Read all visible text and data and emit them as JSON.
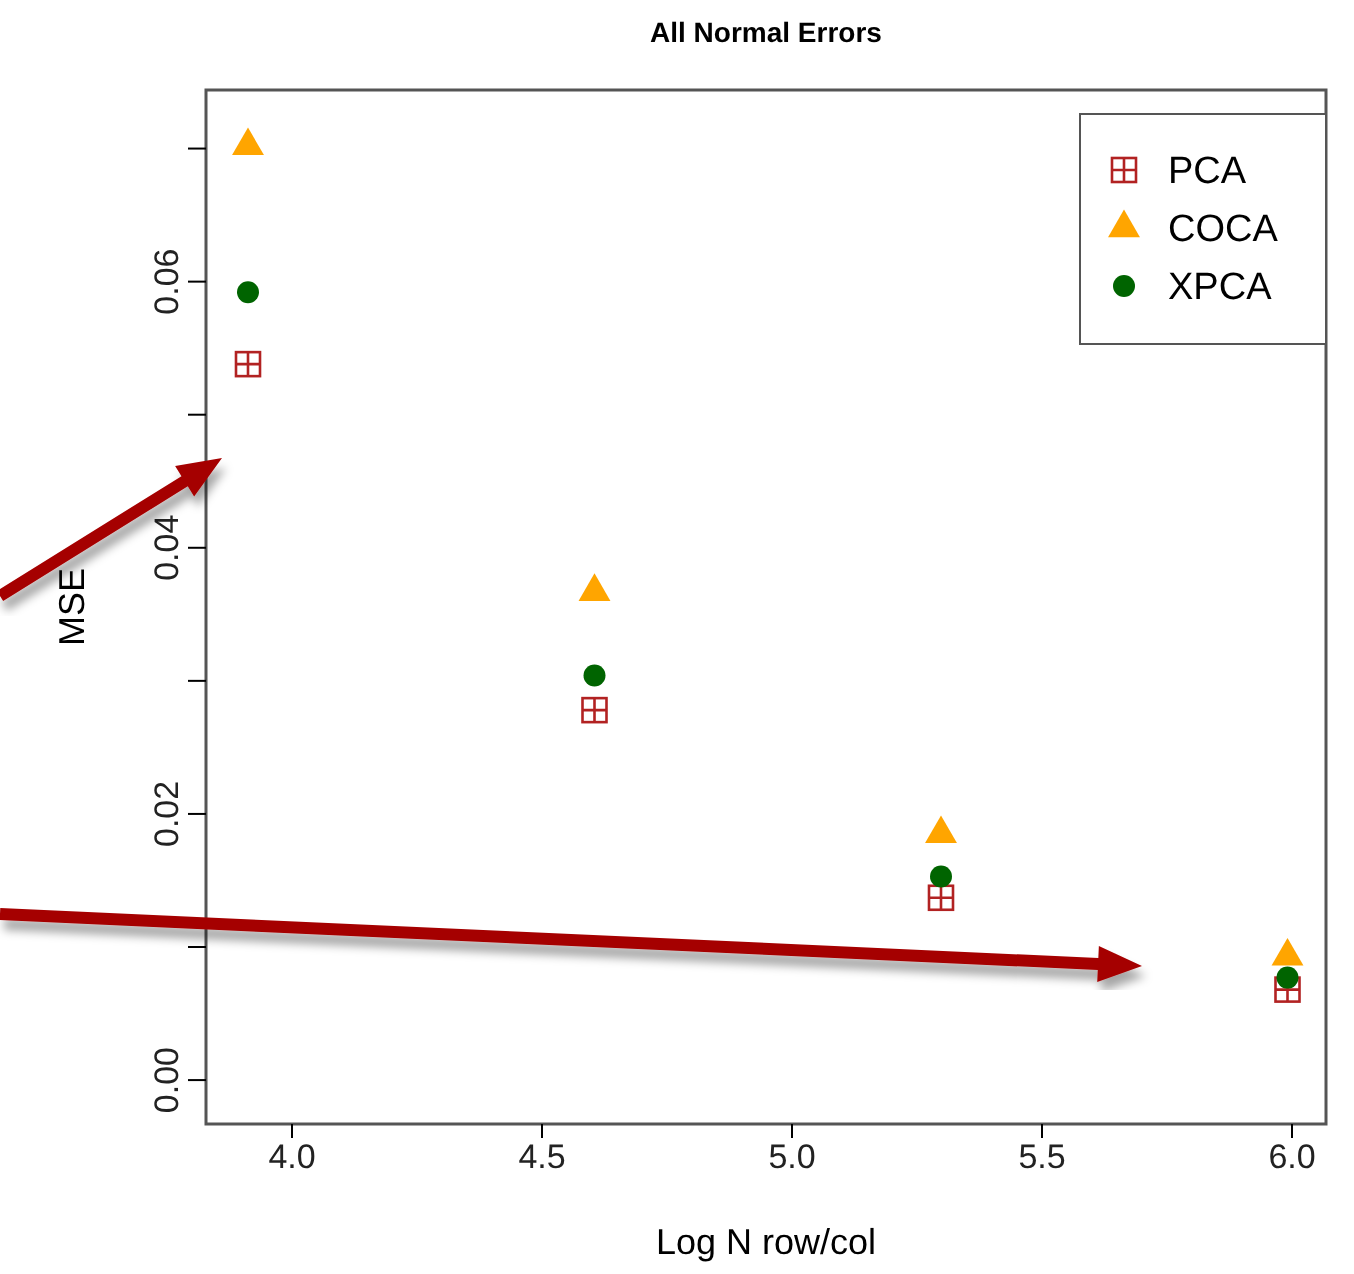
{
  "chart_data": {
    "type": "scatter",
    "title": "All Normal Errors",
    "xlabel": "Log N row/col",
    "ylabel": "MSE",
    "x": [
      3.912,
      4.605,
      5.298,
      5.991
    ],
    "series": [
      {
        "name": "PCA",
        "color": "#b22222",
        "marker": "square",
        "values": [
          0.0538,
          0.0278,
          0.0137,
          0.0068
        ]
      },
      {
        "name": "COCA",
        "color": "#ffa500",
        "marker": "triangle",
        "values": [
          0.0702,
          0.0367,
          0.0185,
          0.0093
        ]
      },
      {
        "name": "XPCA",
        "color": "#006400",
        "marker": "circle",
        "values": [
          0.0592,
          0.0304,
          0.0153,
          0.0077
        ]
      }
    ],
    "xlim": [
      3.828,
      6.068
    ],
    "xticks": [
      {
        "value": 4,
        "label": "4.0"
      },
      4.5,
      {
        "value": 5,
        "label": "5.0"
      },
      5.5,
      {
        "value": 6,
        "label": "6.0"
      }
    ],
    "ylim": [
      -0.0033,
      0.0744
    ],
    "yticks": [
      {
        "value": 0,
        "label": "0.00"
      },
      {
        "value": 0.01,
        "label": null
      },
      {
        "value": 0.02,
        "label": "0.02"
      },
      {
        "value": 0.03,
        "label": null
      },
      {
        "value": 0.04,
        "label": "0.04"
      },
      {
        "value": 0.05,
        "label": null
      },
      {
        "value": 0.06,
        "label": "0.06"
      },
      {
        "value": 0.07,
        "label": null
      }
    ],
    "grid": false,
    "legend": "top right"
  }
}
